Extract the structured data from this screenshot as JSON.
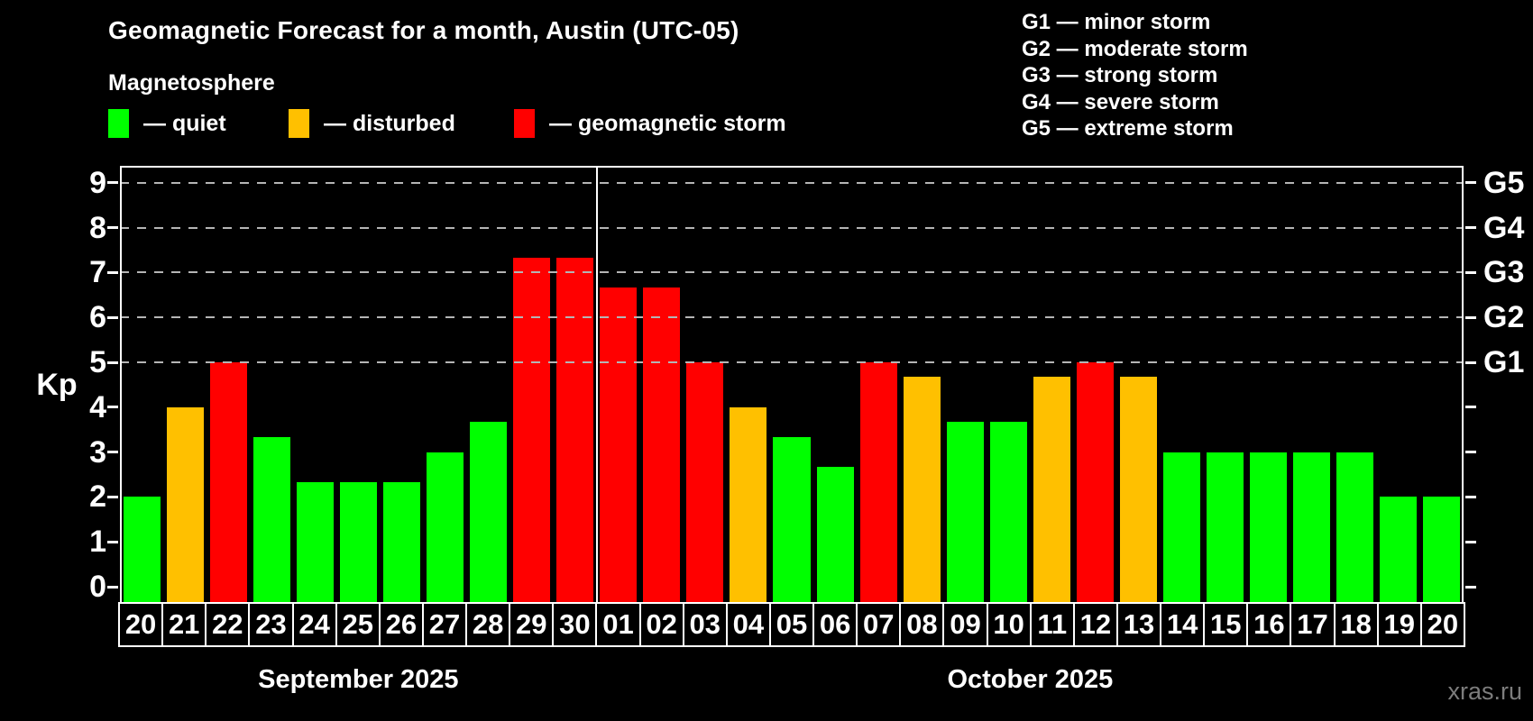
{
  "header": {
    "title": "Geomagnetic Forecast for a month, Austin (UTC-05)",
    "subtitle": "Magnetosphere"
  },
  "legend": {
    "items": [
      {
        "key": "quiet",
        "label": "— quiet"
      },
      {
        "key": "disturbed",
        "label": "— disturbed"
      },
      {
        "key": "storm",
        "label": "— geomagnetic storm"
      }
    ]
  },
  "g_legend": {
    "lines": [
      "G1 — minor storm",
      "G2 — moderate storm",
      "G3 — strong storm",
      "G4 — severe storm",
      "G5 — extreme storm"
    ]
  },
  "colors": {
    "quiet": "#00ff00",
    "disturbed": "#ffc000",
    "storm": "#ff0000",
    "background": "#000000",
    "foreground": "#ffffff",
    "grid": "#b5b5b5",
    "watermark": "#7d7d7d"
  },
  "footer": {
    "watermark": "xras.ru"
  },
  "chart_data": {
    "type": "bar",
    "title": "Geomagnetic Forecast for a month, Austin (UTC-05)",
    "xlabel": "",
    "ylabel": "Kp",
    "ylim": [
      0,
      9.4
    ],
    "yticks": [
      0,
      1,
      2,
      3,
      4,
      5,
      6,
      7,
      8,
      9
    ],
    "grid": "dashed horizontal lines at Kp 5-9",
    "legend_position": "top",
    "right_axis_labels": [
      {
        "label": "G5",
        "kp": 9
      },
      {
        "label": "G4",
        "kp": 8
      },
      {
        "label": "G3",
        "kp": 7
      },
      {
        "label": "G2",
        "kp": 6
      },
      {
        "label": "G1",
        "kp": 5
      }
    ],
    "months": [
      {
        "label": "September 2025",
        "days": 11
      },
      {
        "label": "October 2025",
        "days": 20
      }
    ],
    "series": [
      {
        "day": "20",
        "month": "September 2025",
        "kp": 2.0,
        "status": "quiet"
      },
      {
        "day": "21",
        "month": "September 2025",
        "kp": 4.0,
        "status": "disturbed"
      },
      {
        "day": "22",
        "month": "September 2025",
        "kp": 5.0,
        "status": "storm"
      },
      {
        "day": "23",
        "month": "September 2025",
        "kp": 3.33,
        "status": "quiet"
      },
      {
        "day": "24",
        "month": "September 2025",
        "kp": 2.33,
        "status": "quiet"
      },
      {
        "day": "25",
        "month": "September 2025",
        "kp": 2.33,
        "status": "quiet"
      },
      {
        "day": "26",
        "month": "September 2025",
        "kp": 2.33,
        "status": "quiet"
      },
      {
        "day": "27",
        "month": "September 2025",
        "kp": 3.0,
        "status": "quiet"
      },
      {
        "day": "28",
        "month": "September 2025",
        "kp": 3.67,
        "status": "quiet"
      },
      {
        "day": "29",
        "month": "September 2025",
        "kp": 7.33,
        "status": "storm"
      },
      {
        "day": "30",
        "month": "September 2025",
        "kp": 7.33,
        "status": "storm"
      },
      {
        "day": "01",
        "month": "October 2025",
        "kp": 6.67,
        "status": "storm"
      },
      {
        "day": "02",
        "month": "October 2025",
        "kp": 6.67,
        "status": "storm"
      },
      {
        "day": "03",
        "month": "October 2025",
        "kp": 5.0,
        "status": "storm"
      },
      {
        "day": "04",
        "month": "October 2025",
        "kp": 4.0,
        "status": "disturbed"
      },
      {
        "day": "05",
        "month": "October 2025",
        "kp": 3.33,
        "status": "quiet"
      },
      {
        "day": "06",
        "month": "October 2025",
        "kp": 2.67,
        "status": "quiet"
      },
      {
        "day": "07",
        "month": "October 2025",
        "kp": 5.0,
        "status": "storm"
      },
      {
        "day": "08",
        "month": "October 2025",
        "kp": 4.67,
        "status": "disturbed"
      },
      {
        "day": "09",
        "month": "October 2025",
        "kp": 3.67,
        "status": "quiet"
      },
      {
        "day": "10",
        "month": "October 2025",
        "kp": 3.67,
        "status": "quiet"
      },
      {
        "day": "11",
        "month": "October 2025",
        "kp": 4.67,
        "status": "disturbed"
      },
      {
        "day": "12",
        "month": "October 2025",
        "kp": 5.0,
        "status": "storm"
      },
      {
        "day": "13",
        "month": "October 2025",
        "kp": 4.67,
        "status": "disturbed"
      },
      {
        "day": "14",
        "month": "October 2025",
        "kp": 3.0,
        "status": "quiet"
      },
      {
        "day": "15",
        "month": "October 2025",
        "kp": 3.0,
        "status": "quiet"
      },
      {
        "day": "16",
        "month": "October 2025",
        "kp": 3.0,
        "status": "quiet"
      },
      {
        "day": "17",
        "month": "October 2025",
        "kp": 3.0,
        "status": "quiet"
      },
      {
        "day": "18",
        "month": "October 2025",
        "kp": 3.0,
        "status": "quiet"
      },
      {
        "day": "19",
        "month": "October 2025",
        "kp": 2.0,
        "status": "quiet"
      },
      {
        "day": "20",
        "month": "October 2025",
        "kp": 2.0,
        "status": "quiet"
      }
    ]
  }
}
